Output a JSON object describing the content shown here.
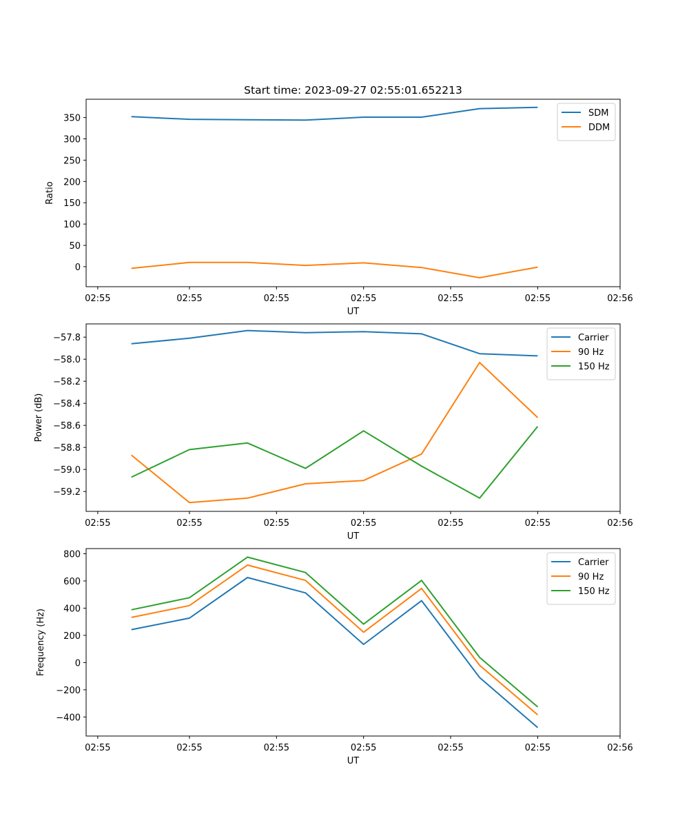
{
  "figure_title": "Start time: 2023-09-27 02:55:01.652213",
  "colors": {
    "blue": "#1f77b4",
    "orange": "#ff7f0e",
    "green": "#2ca02c"
  },
  "chart_data": [
    {
      "type": "line",
      "title": "Start time: 2023-09-27 02:55:01.652213",
      "xlabel": "UT",
      "ylabel": "Ratio",
      "x": [
        1,
        2,
        3,
        4,
        5,
        6,
        7,
        8
      ],
      "xlim": [
        0.22,
        9.42
      ],
      "xticks": [
        0.42,
        2.0,
        3.5,
        5.0,
        6.5,
        8.0,
        9.42
      ],
      "xtick_labels": [
        "02:55",
        "02:55",
        "02:55",
        "02:55",
        "02:55",
        "02:55",
        "02:56"
      ],
      "ylim": [
        -47,
        393
      ],
      "yticks": [
        0,
        50,
        100,
        150,
        200,
        250,
        300,
        350
      ],
      "ytick_labels": [
        "0",
        "50",
        "100",
        "150",
        "200",
        "250",
        "300",
        "350"
      ],
      "legend_position": "top-right",
      "series": [
        {
          "name": "SDM",
          "color": "blue",
          "values": [
            352,
            346,
            345,
            344,
            351,
            351,
            371,
            374
          ]
        },
        {
          "name": "DDM",
          "color": "orange",
          "values": [
            -4,
            10,
            10,
            3,
            9,
            -2,
            -26,
            -1
          ]
        }
      ]
    },
    {
      "type": "line",
      "title": "",
      "xlabel": "UT",
      "ylabel": "Power (dB)",
      "x": [
        1,
        2,
        3,
        4,
        5,
        6,
        7,
        8
      ],
      "xlim": [
        0.22,
        9.42
      ],
      "xticks": [
        0.42,
        2.0,
        3.5,
        5.0,
        6.5,
        8.0,
        9.42
      ],
      "xtick_labels": [
        "02:55",
        "02:55",
        "02:55",
        "02:55",
        "02:55",
        "02:55",
        "02:56"
      ],
      "ylim": [
        -59.38,
        -57.68
      ],
      "yticks": [
        -59.2,
        -59.0,
        -58.8,
        -58.6,
        -58.4,
        -58.2,
        -58.0,
        -57.8
      ],
      "ytick_labels": [
        "−59.2",
        "−59.0",
        "−58.8",
        "−58.6",
        "−58.4",
        "−58.2",
        "−58.0",
        "−57.8"
      ],
      "legend_position": "top-right",
      "series": [
        {
          "name": "Carrier",
          "color": "blue",
          "values": [
            -57.86,
            -57.81,
            -57.74,
            -57.76,
            -57.75,
            -57.77,
            -57.95,
            -57.97
          ]
        },
        {
          "name": "90 Hz",
          "color": "orange",
          "values": [
            -58.87,
            -59.3,
            -59.26,
            -59.13,
            -59.1,
            -58.86,
            -58.03,
            -58.53
          ]
        },
        {
          "name": "150 Hz",
          "color": "green",
          "values": [
            -59.07,
            -58.82,
            -58.76,
            -58.99,
            -58.65,
            -58.97,
            -59.26,
            -58.61
          ]
        }
      ]
    },
    {
      "type": "line",
      "title": "",
      "xlabel": "UT",
      "ylabel": "Frequency (Hz)",
      "x": [
        1,
        2,
        3,
        4,
        5,
        6,
        7,
        8
      ],
      "xlim": [
        0.22,
        9.42
      ],
      "xticks": [
        0.42,
        2.0,
        3.5,
        5.0,
        6.5,
        8.0,
        9.42
      ],
      "xtick_labels": [
        "02:55",
        "02:55",
        "02:55",
        "02:55",
        "02:55",
        "02:55",
        "02:56"
      ],
      "ylim": [
        -540,
        838
      ],
      "yticks": [
        -400,
        -200,
        0,
        200,
        400,
        600,
        800
      ],
      "ytick_labels": [
        "−400",
        "−200",
        "0",
        "200",
        "400",
        "600",
        "800"
      ],
      "legend_position": "top-right",
      "series": [
        {
          "name": "Carrier",
          "color": "blue",
          "values": [
            242,
            327,
            625,
            512,
            134,
            455,
            -110,
            -478
          ]
        },
        {
          "name": "90 Hz",
          "color": "orange",
          "values": [
            332,
            419,
            717,
            604,
            223,
            545,
            -20,
            -384
          ]
        },
        {
          "name": "150 Hz",
          "color": "green",
          "values": [
            388,
            477,
            775,
            662,
            283,
            604,
            38,
            -326
          ]
        }
      ]
    }
  ]
}
